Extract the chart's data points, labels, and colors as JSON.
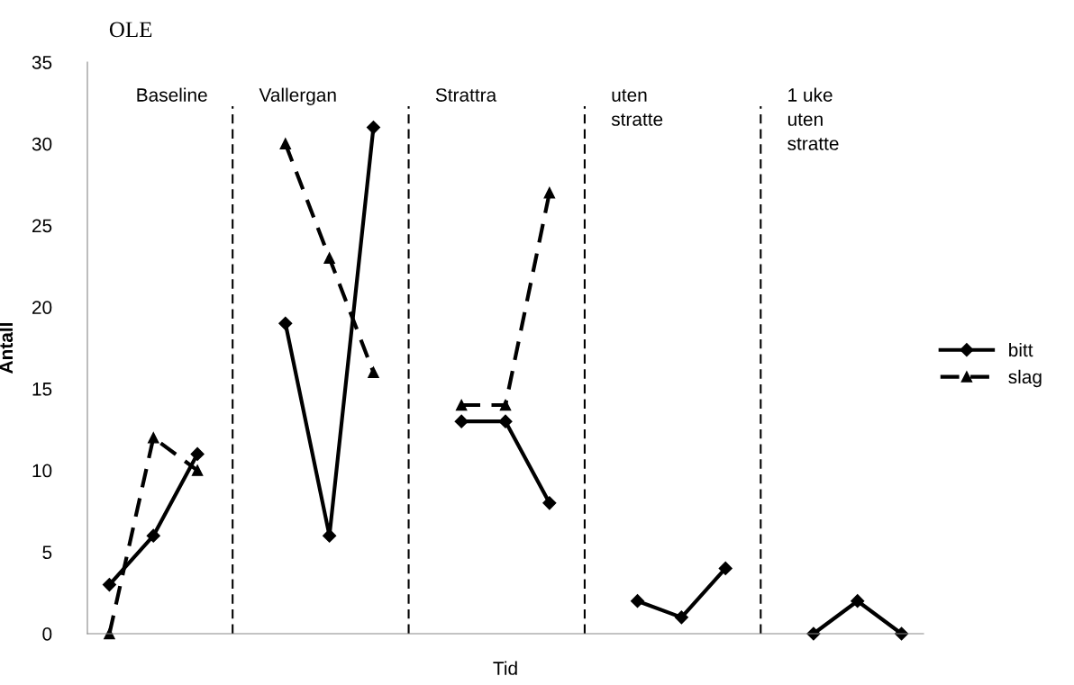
{
  "chart_data": {
    "type": "line",
    "title": "OLE",
    "xlabel": "Tid",
    "ylabel": "Antall",
    "categories": [
      null,
      null,
      null,
      null,
      null,
      null,
      null,
      null,
      null,
      null,
      null,
      null,
      null,
      null,
      null,
      null,
      null,
      null,
      null
    ],
    "ylim": [
      0,
      35
    ],
    "yticks": [
      0,
      5,
      10,
      15,
      20,
      25,
      30,
      35
    ],
    "tick_labels": "y",
    "grid": false,
    "legend": "right",
    "series": [
      {
        "name": "bitt",
        "color": "#000000",
        "marker": "diamond",
        "line_style": "solid",
        "values": [
          3,
          6,
          11,
          null,
          19,
          6,
          31,
          null,
          13,
          13,
          8,
          null,
          2,
          1,
          4,
          null,
          0,
          2,
          0
        ]
      },
      {
        "name": "slag",
        "color": "#000000",
        "marker": "triangle",
        "line_style": "dashed",
        "values": [
          0,
          12,
          10,
          null,
          30,
          23,
          16,
          null,
          14,
          14,
          27,
          null,
          null,
          null,
          null,
          null,
          null,
          null,
          null
        ]
      }
    ],
    "ref_lines": [
      {
        "axis": "x",
        "label": "Vallergan",
        "line_style": "dashed",
        "color": "#000000"
      },
      {
        "axis": "x",
        "label": "Strattra",
        "line_style": "dashed",
        "color": "#000000"
      },
      {
        "axis": "x",
        "label": "uten\nstratte",
        "line_style": "dashed",
        "color": "#000000"
      },
      {
        "axis": "x",
        "label": "1 uke\nuten\nstratte",
        "line_style": "dashed",
        "color": "#000000"
      }
    ],
    "annotations": [
      "Baseline"
    ]
  }
}
